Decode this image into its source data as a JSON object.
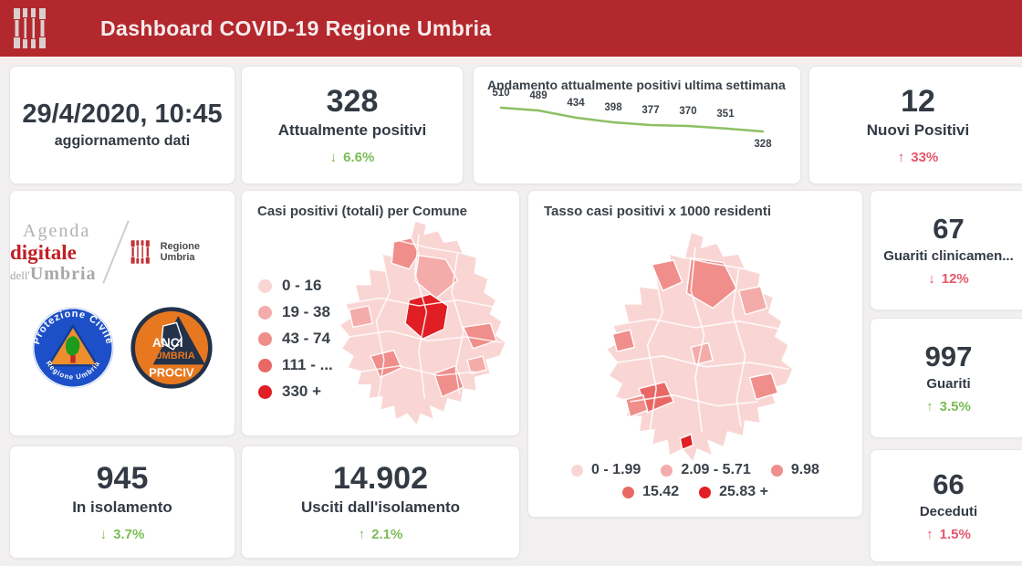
{
  "header": {
    "title": "Dashboard COVID-19 Regione Umbria",
    "logo_icon": "regione-umbria-bars-icon",
    "background_color": "#B3282D"
  },
  "cards": {
    "updated": {
      "value": "29/4/2020, 10:45",
      "label": "aggiornamento dati"
    },
    "attualmente_positivi": {
      "value": "328",
      "label": "Attualmente positivi",
      "arrow": "↓",
      "delta": "6.6%",
      "delta_color": "#7CBD56"
    },
    "nuovi_positivi": {
      "value": "12",
      "label": "Nuovi Positivi",
      "arrow": "↑",
      "delta": "33%",
      "delta_color": "#E4566B"
    },
    "guariti_clinicamente": {
      "value": "67",
      "label": "Guariti clinicamen...",
      "arrow": "↓",
      "delta": "12%",
      "delta_color": "#E4566B"
    },
    "guariti": {
      "value": "997",
      "label": "Guariti",
      "arrow": "↑",
      "delta": "3.5%",
      "delta_color": "#7CBD56"
    },
    "in_isolamento": {
      "value": "945",
      "label": "In isolamento",
      "arrow": "↓",
      "delta": "3.7%",
      "delta_color": "#7CBD56"
    },
    "usciti_isolamento": {
      "value": "14.902",
      "label": "Usciti dall'isolamento",
      "arrow": "↑",
      "delta": "2.1%",
      "delta_color": "#7CBD56"
    },
    "deceduti": {
      "value": "66",
      "label": "Deceduti",
      "arrow": "↑",
      "delta": "1.5%",
      "delta_color": "#E4566B"
    }
  },
  "chart_data": {
    "type": "line",
    "title": "Andamento attualmente positivi ultima settimana",
    "values": [
      510,
      489,
      434,
      398,
      377,
      370,
      351,
      328
    ],
    "line_color": "#8CC063",
    "grid": false,
    "data_labels": true,
    "last_label_below": true
  },
  "map1": {
    "title": "Casi positivi (totali) per Comune",
    "type": "choropleth",
    "legend": [
      {
        "label": "0 - 16",
        "color": "#F9D6D4"
      },
      {
        "label": "19 - 38",
        "color": "#F4ACAA"
      },
      {
        "label": "43 - 74",
        "color": "#EF8E8B"
      },
      {
        "label": "111 - ...",
        "color": "#E96865"
      },
      {
        "label": "330 +",
        "color": "#E01E24"
      }
    ]
  },
  "map2": {
    "title": "Tasso casi positivi x 1000 residenti",
    "type": "choropleth",
    "legend": [
      {
        "label": "0 - 1.99",
        "color": "#F9D6D4"
      },
      {
        "label": "2.09 - 5.71",
        "color": "#F4ACAA"
      },
      {
        "label": "9.98",
        "color": "#EF8E8B"
      },
      {
        "label": "15.42",
        "color": "#E96865"
      },
      {
        "label": "25.83 +",
        "color": "#E01E24"
      }
    ]
  },
  "logos": {
    "agenda": {
      "line1": "Agenda",
      "line2": "digitale",
      "line3_small": "dell'",
      "line3_big": "Umbria"
    },
    "regione_umbria": {
      "label": "Regione Umbria",
      "icon": "regione-umbria-bars-icon"
    },
    "protezione_civile": {
      "arc_top": "Protezione Civile",
      "arc_bottom": "Regione Umbria",
      "icon": "protezione-civile-badge-icon"
    },
    "anci": {
      "line1": "ANCI",
      "line2": "UMBRIA",
      "line3": "PROCIV",
      "icon": "anci-umbria-prociv-badge-icon"
    }
  }
}
